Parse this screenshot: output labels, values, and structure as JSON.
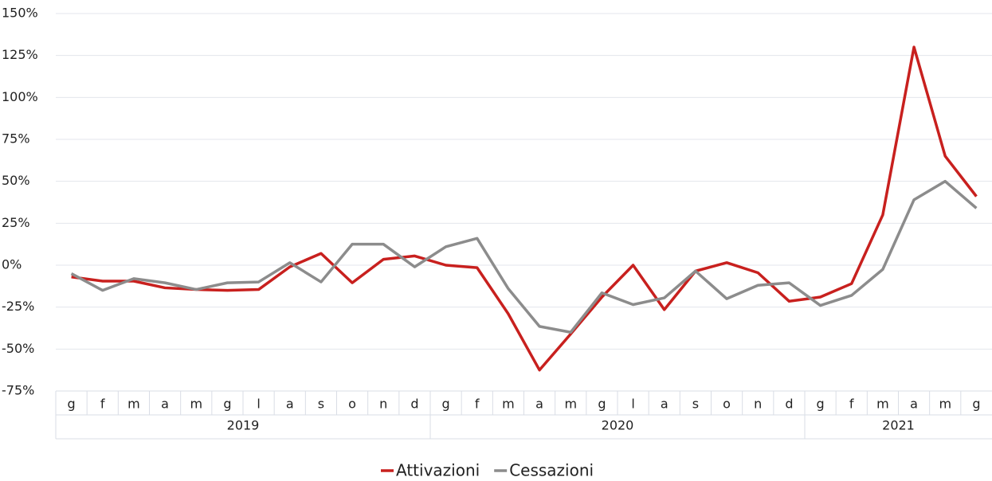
{
  "chart_data": {
    "type": "line",
    "categories": [
      "g",
      "f",
      "m",
      "a",
      "m",
      "g",
      "l",
      "a",
      "s",
      "o",
      "n",
      "d",
      "g",
      "f",
      "m",
      "a",
      "m",
      "g",
      "l",
      "a",
      "s",
      "o",
      "n",
      "d",
      "g",
      "f",
      "m",
      "a",
      "m",
      "g"
    ],
    "groups": [
      {
        "label": "2019",
        "size": 12
      },
      {
        "label": "2020",
        "size": 12
      },
      {
        "label": "2021",
        "size": 6
      }
    ],
    "series": [
      {
        "name": "Attivazioni",
        "color": "#c8201e",
        "values": [
          -7,
          -9.5,
          -9.5,
          -13.5,
          -14.5,
          -15,
          -14.5,
          -1,
          7,
          -10.5,
          3.5,
          5.5,
          0,
          -1.5,
          -29,
          -62.5,
          -41,
          -19,
          0,
          -26.5,
          -3.5,
          1.5,
          -4.5,
          -21.5,
          -19,
          -11,
          30,
          130,
          65,
          41
        ]
      },
      {
        "name": "Cessazioni",
        "color": "#8c8c8c",
        "values": [
          -5,
          -15,
          -8,
          -10.5,
          -14.5,
          -10.5,
          -10,
          1.5,
          -10,
          12.5,
          12.5,
          -1,
          11,
          16,
          -14,
          -36.5,
          -40,
          -16.5,
          -23.5,
          -19.5,
          -3.5,
          -20,
          -12,
          -10.5,
          -24,
          -18,
          -2.5,
          39,
          50,
          34
        ]
      }
    ],
    "ylim": [
      -75,
      150
    ],
    "yticks": [
      {
        "value": -75,
        "label": "-75%"
      },
      {
        "value": -50,
        "label": "-50%"
      },
      {
        "value": -25,
        "label": "-25%"
      },
      {
        "value": 0,
        "label": "0%"
      },
      {
        "value": 25,
        "label": "25%"
      },
      {
        "value": 50,
        "label": "50%"
      },
      {
        "value": 75,
        "label": "75%"
      },
      {
        "value": 100,
        "label": "100%"
      },
      {
        "value": 125,
        "label": "125%"
      },
      {
        "value": 150,
        "label": "150%"
      }
    ],
    "grid": true,
    "legend": "bottom"
  }
}
